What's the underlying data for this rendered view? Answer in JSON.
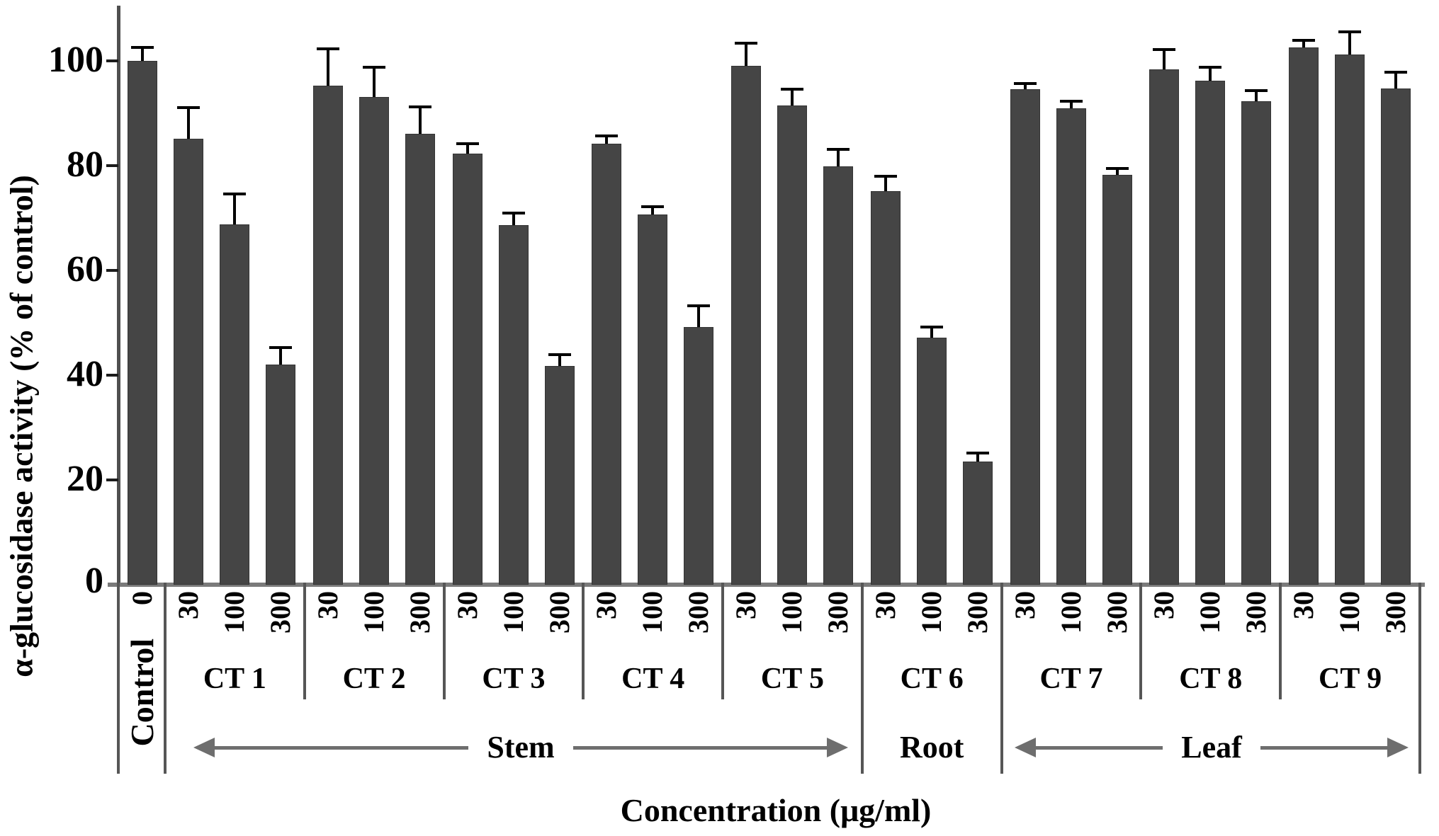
{
  "chart_data": {
    "type": "bar",
    "title": "",
    "ylabel": "α-glucosidase activity (% of control)",
    "xlabel": "Concentration (μg/ml)",
    "ylim": [
      0,
      110
    ],
    "yticks": [
      0,
      20,
      40,
      60,
      80,
      100
    ],
    "grid": false,
    "legend": false,
    "bar_color": "#454545",
    "error_bar_color": "#000000",
    "groups": [
      {
        "name": "Control",
        "bars": [
          {
            "concentration": "0",
            "value": 100.0,
            "error": 2.5
          }
        ]
      },
      {
        "name": "CT 1",
        "bars": [
          {
            "concentration": "30",
            "value": 85.1,
            "error": 5.8
          },
          {
            "concentration": "100",
            "value": 68.8,
            "error": 5.6
          },
          {
            "concentration": "300",
            "value": 42.0,
            "error": 3.2
          }
        ]
      },
      {
        "name": "CT 2",
        "bars": [
          {
            "concentration": "30",
            "value": 95.3,
            "error": 6.8
          },
          {
            "concentration": "100",
            "value": 93.1,
            "error": 5.5
          },
          {
            "concentration": "300",
            "value": 86.1,
            "error": 5.0
          }
        ]
      },
      {
        "name": "CT 3",
        "bars": [
          {
            "concentration": "30",
            "value": 82.3,
            "error": 1.8
          },
          {
            "concentration": "100",
            "value": 68.6,
            "error": 2.2
          },
          {
            "concentration": "300",
            "value": 41.8,
            "error": 2.0
          }
        ]
      },
      {
        "name": "CT 4",
        "bars": [
          {
            "concentration": "30",
            "value": 84.2,
            "error": 1.4
          },
          {
            "concentration": "100",
            "value": 70.7,
            "error": 1.3
          },
          {
            "concentration": "300",
            "value": 49.2,
            "error": 3.9
          }
        ]
      },
      {
        "name": "CT 5",
        "bars": [
          {
            "concentration": "30",
            "value": 99.0,
            "error": 4.3
          },
          {
            "concentration": "100",
            "value": 91.5,
            "error": 3.0
          },
          {
            "concentration": "300",
            "value": 79.8,
            "error": 3.2
          }
        ]
      },
      {
        "name": "CT 6",
        "bars": [
          {
            "concentration": "30",
            "value": 75.2,
            "error": 2.7
          },
          {
            "concentration": "100",
            "value": 47.1,
            "error": 1.9
          },
          {
            "concentration": "300",
            "value": 23.5,
            "error": 1.5
          }
        ]
      },
      {
        "name": "CT 7",
        "bars": [
          {
            "concentration": "30",
            "value": 94.6,
            "error": 1.0
          },
          {
            "concentration": "100",
            "value": 90.9,
            "error": 1.3
          },
          {
            "concentration": "300",
            "value": 78.2,
            "error": 1.1
          }
        ]
      },
      {
        "name": "CT 8",
        "bars": [
          {
            "concentration": "30",
            "value": 98.4,
            "error": 3.6
          },
          {
            "concentration": "100",
            "value": 96.2,
            "error": 2.5
          },
          {
            "concentration": "300",
            "value": 92.3,
            "error": 1.9
          }
        ]
      },
      {
        "name": "CT 9",
        "bars": [
          {
            "concentration": "30",
            "value": 102.6,
            "error": 1.2
          },
          {
            "concentration": "100",
            "value": 101.2,
            "error": 4.2
          },
          {
            "concentration": "300",
            "value": 94.7,
            "error": 3.0
          }
        ]
      }
    ],
    "sections": [
      {
        "label": "Stem",
        "from_group": "CT 1",
        "to_group": "CT 5",
        "arrows": true
      },
      {
        "label": "Root",
        "from_group": "CT 6",
        "to_group": "CT 6",
        "arrows": false
      },
      {
        "label": "Leaf",
        "from_group": "CT 7",
        "to_group": "CT 9",
        "arrows": true
      }
    ]
  }
}
